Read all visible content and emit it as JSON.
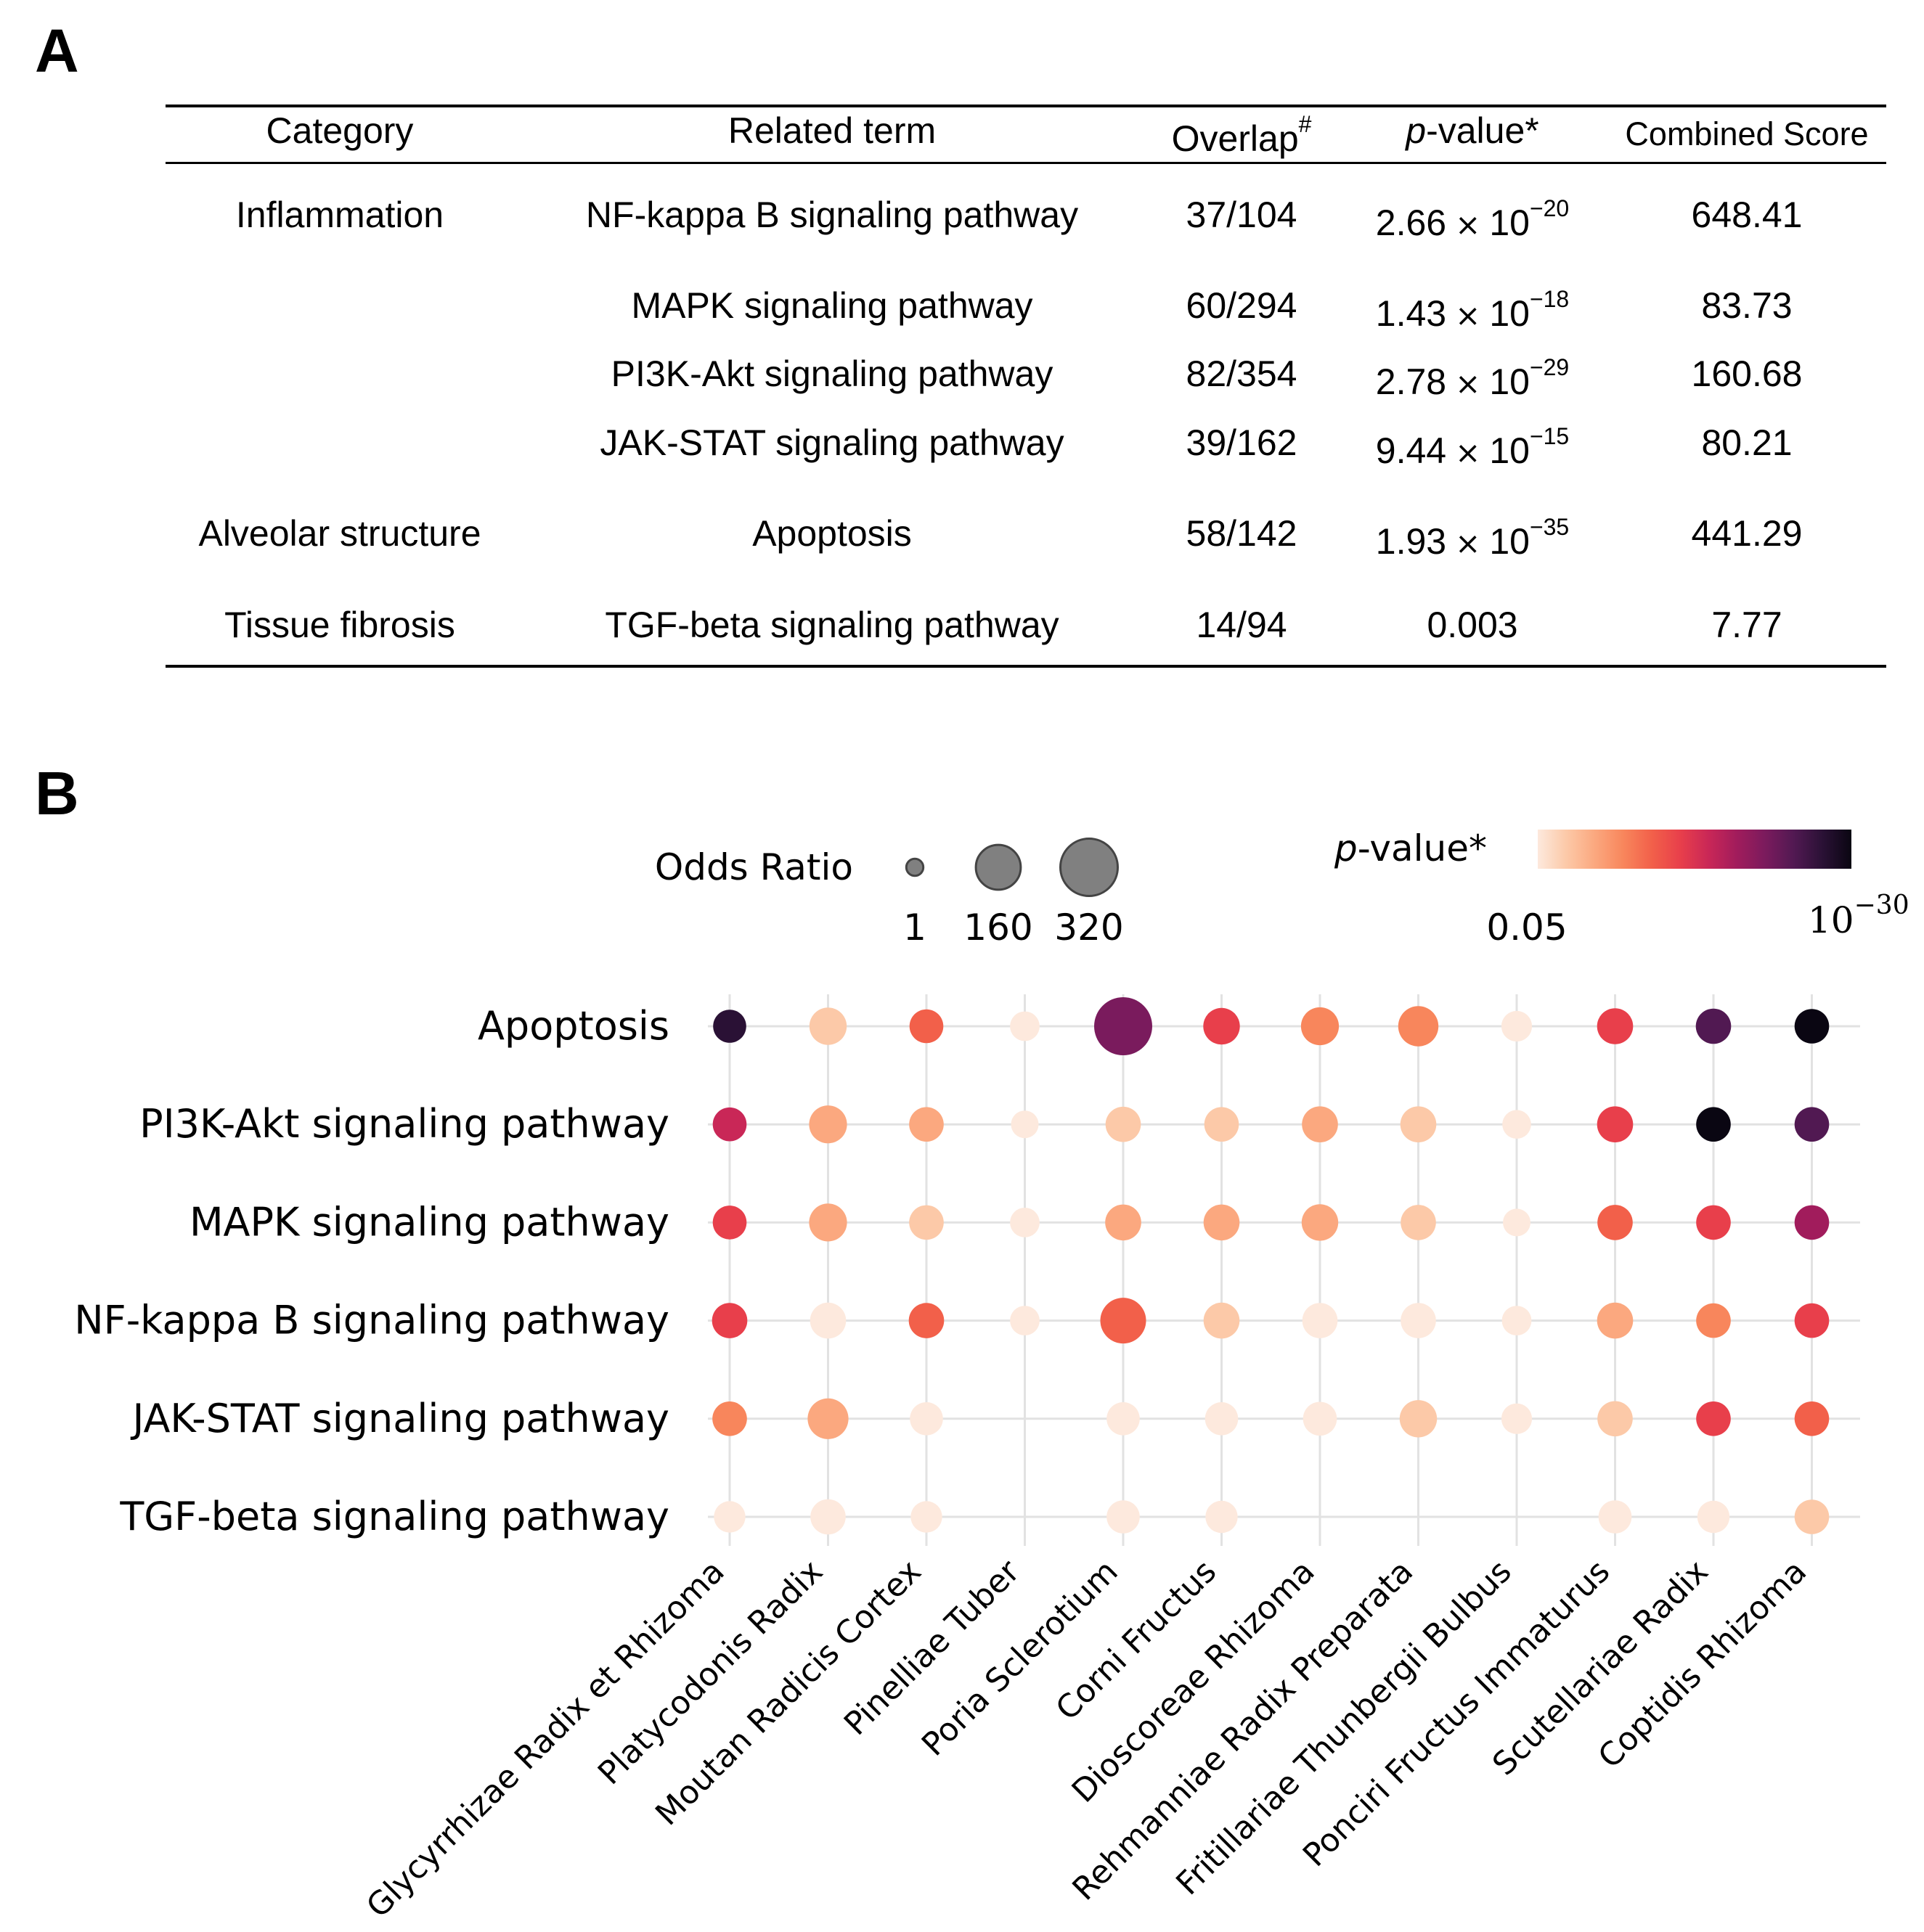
{
  "panel_labels": {
    "a": "A",
    "b": "B"
  },
  "table": {
    "headers": {
      "category": "Category",
      "term": "Related term",
      "overlap": "Overlap",
      "overlap_mark": "#",
      "pvalue_italic": "p",
      "pvalue_rest": "-value*",
      "combined": "Combined Score"
    },
    "times_symbol": "×",
    "rows": [
      {
        "category": "Inflammation",
        "term": "NF-kappa B signaling pathway",
        "overlap": "37/104",
        "p_mantissa": "2.66",
        "p_base": "10",
        "p_exp": "−20",
        "combined": "648.41"
      },
      {
        "category": "",
        "term": "MAPK signaling pathway",
        "overlap": "60/294",
        "p_mantissa": "1.43",
        "p_base": "10",
        "p_exp": "−18",
        "combined": "83.73"
      },
      {
        "category": "",
        "term": "PI3K-Akt signaling pathway",
        "overlap": "82/354",
        "p_mantissa": "2.78",
        "p_base": "10",
        "p_exp": "−29",
        "combined": "160.68"
      },
      {
        "category": "",
        "term": "JAK-STAT signaling pathway",
        "overlap": "39/162",
        "p_mantissa": "9.44",
        "p_base": "10",
        "p_exp": "−15",
        "combined": "80.21"
      },
      {
        "category": "Alveolar structure",
        "term": "Apoptosis",
        "overlap": "58/142",
        "p_mantissa": "1.93",
        "p_base": "10",
        "p_exp": "−35",
        "combined": "441.29"
      },
      {
        "category": "Tissue fibrosis",
        "term": "TGF-beta signaling pathway",
        "overlap": "14/94",
        "p_plain": "0.003",
        "combined": "7.77"
      }
    ]
  },
  "colors": {
    "grid": "#e2e2e2",
    "dot_edge": "#444444",
    "legend_dot": "#808080",
    "scale": [
      "#fde9dd",
      "#fcc9a8",
      "#fba87f",
      "#f8865c",
      "#f2604a",
      "#e83f4b",
      "#c92757",
      "#a11c5c",
      "#7a1b5d",
      "#511952",
      "#2a1135",
      "#0a0612"
    ]
  },
  "chart_data": {
    "type": "scatter",
    "subtype": "dot-matrix",
    "y_categories": [
      "Apoptosis",
      "PI3K-Akt signaling pathway",
      "MAPK signaling pathway",
      "NF-kappa B signaling pathway",
      "JAK-STAT signaling pathway",
      "TGF-beta signaling pathway"
    ],
    "x_categories": [
      "Glycyrrhizae Radix et Rhizoma",
      "Platycodonis Radix",
      "Moutan Radicis Cortex",
      "Pinelliae Tuber",
      "Poria Sclerotium",
      "Corni Fructus",
      "Dioscoreae Rhizoma",
      "Rehmanniae Radix Preparata",
      "Fritillariae Thunbergii Bulbus",
      "Ponciri Fructus Immaturus",
      "Scutellariae Radix",
      "Coptidis Rhizoma"
    ],
    "size_metric": "Odds Ratio",
    "color_metric": "p-value* (color index 0 = 0.05 … 11 = 10^-30)",
    "odds_ratio": [
      [
        60,
        90,
        65,
        40,
        330,
        85,
        95,
        115,
        45,
        80,
        75,
        70
      ],
      [
        65,
        95,
        70,
        30,
        75,
        70,
        80,
        80,
        35,
        80,
        70,
        70
      ],
      [
        65,
        95,
        70,
        40,
        80,
        80,
        85,
        75,
        30,
        75,
        70,
        70
      ],
      [
        75,
        80,
        75,
        40,
        170,
        80,
        75,
        75,
        40,
        80,
        70,
        70
      ],
      [
        70,
        120,
        60,
        0,
        60,
        60,
        65,
        90,
        45,
        75,
        70,
        70
      ],
      [
        50,
        75,
        50,
        0,
        60,
        55,
        0,
        0,
        0,
        60,
        55,
        70
      ]
    ],
    "pvalue_color_index": [
      [
        10,
        1,
        4,
        0,
        8,
        5,
        3,
        3,
        0,
        5,
        9,
        11
      ],
      [
        6,
        2,
        2,
        0,
        1,
        1,
        2,
        1,
        0,
        5,
        11,
        9
      ],
      [
        5,
        2,
        1,
        0,
        2,
        2,
        2,
        1,
        0,
        4,
        5,
        7
      ],
      [
        5,
        0,
        4,
        0,
        4,
        1,
        0,
        0,
        0,
        2,
        3,
        5
      ],
      [
        3,
        2,
        0,
        0,
        0,
        0,
        0,
        1,
        0,
        1,
        5,
        4
      ],
      [
        0,
        0,
        0,
        0,
        0,
        0,
        0,
        0,
        0,
        0,
        0,
        1
      ]
    ],
    "legend": {
      "size_title": "Odds Ratio",
      "size_values": [
        1,
        160,
        320
      ],
      "size_labels": [
        "1",
        "160",
        "320"
      ],
      "color_title_italic": "p",
      "color_title_rest": "-value*",
      "color_min_label": "0.05",
      "color_max_base": "10",
      "color_max_exp": "−30"
    }
  }
}
